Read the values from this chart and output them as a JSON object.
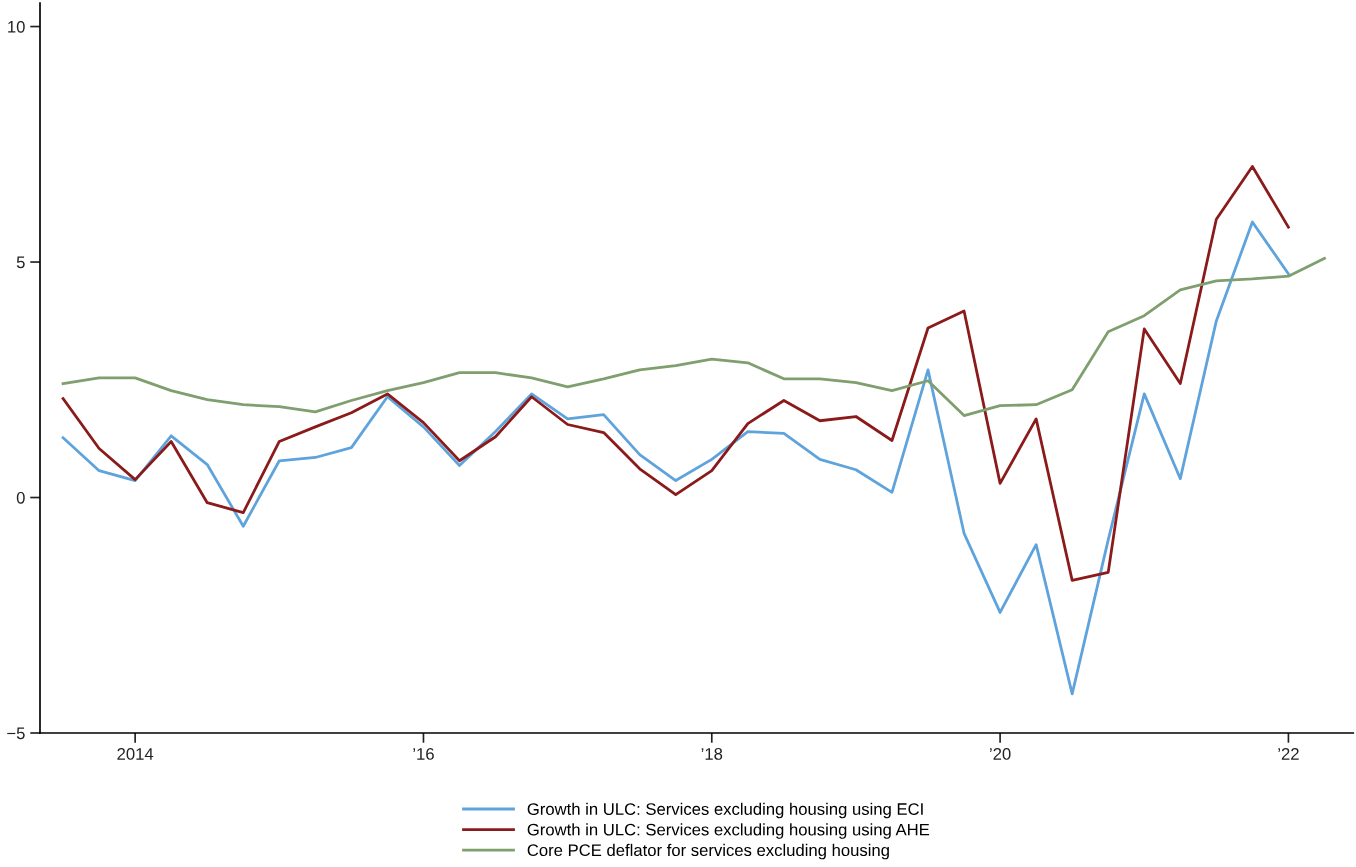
{
  "chart_data": {
    "type": "line",
    "x": [
      2013.5,
      2013.75,
      2014,
      2014.25,
      2014.5,
      2014.75,
      2015,
      2015.25,
      2015.5,
      2015.75,
      2016,
      2016.25,
      2016.5,
      2016.75,
      2017,
      2017.25,
      2017.5,
      2017.75,
      2018,
      2018.25,
      2018.5,
      2018.75,
      2019,
      2019.25,
      2019.5,
      2019.75,
      2020,
      2020.25,
      2020.5,
      2020.75,
      2021,
      2021.25,
      2021.5,
      2021.75,
      2022,
      2022.25
    ],
    "series": [
      {
        "name": "Growth in ULC: Services excluding housing using ECI",
        "color": "#5ea3dc",
        "values": [
          1.27,
          0.57,
          0.36,
          1.31,
          0.7,
          -0.61,
          0.78,
          0.85,
          1.06,
          2.14,
          1.5,
          0.68,
          1.4,
          2.2,
          1.67,
          1.76,
          0.91,
          0.36,
          0.81,
          1.4,
          1.36,
          0.81,
          0.59,
          0.11,
          2.71,
          -0.76,
          -2.44,
          -1.0,
          -4.17,
          -0.9,
          2.2,
          0.4,
          3.75,
          5.85,
          4.75,
          null
        ]
      },
      {
        "name": "Growth in ULC: Services excluding housing using AHE",
        "color": "#8b1a1a",
        "values": [
          2.1,
          1.04,
          0.38,
          1.19,
          -0.11,
          -0.32,
          1.19,
          1.5,
          1.8,
          2.2,
          1.59,
          0.78,
          1.29,
          2.14,
          1.55,
          1.38,
          0.61,
          0.06,
          0.57,
          1.57,
          2.06,
          1.63,
          1.72,
          1.21,
          3.6,
          3.96,
          0.3,
          1.67,
          -1.76,
          -1.59,
          3.58,
          2.42,
          5.91,
          7.03,
          5.74,
          null
        ]
      },
      {
        "name": "Core PCE deflator for services excluding housing",
        "color": "#7f9f6f",
        "values": [
          2.42,
          2.54,
          2.54,
          2.27,
          2.08,
          1.97,
          1.93,
          1.82,
          2.06,
          2.27,
          2.44,
          2.65,
          2.65,
          2.54,
          2.35,
          2.52,
          2.71,
          2.8,
          2.94,
          2.86,
          2.52,
          2.52,
          2.44,
          2.27,
          2.48,
          1.74,
          1.95,
          1.97,
          2.29,
          3.52,
          3.86,
          4.41,
          4.6,
          4.64,
          4.7,
          5.08
        ]
      }
    ],
    "xlim": [
      2013.34,
      2022.45
    ],
    "xticks": [
      {
        "value": 2014,
        "label": "2014"
      },
      {
        "value": 2016,
        "label": "’16"
      },
      {
        "value": 2018,
        "label": "’18"
      },
      {
        "value": 2020,
        "label": "’20"
      },
      {
        "value": 2022,
        "label": "’22"
      }
    ],
    "ylim": [
      -5,
      10.5
    ],
    "yticks": [
      {
        "value": -5,
        "label": "−5"
      },
      0,
      5,
      10
    ],
    "grid": false,
    "legend": "bottom",
    "marker": "none",
    "line_style": "solid"
  }
}
